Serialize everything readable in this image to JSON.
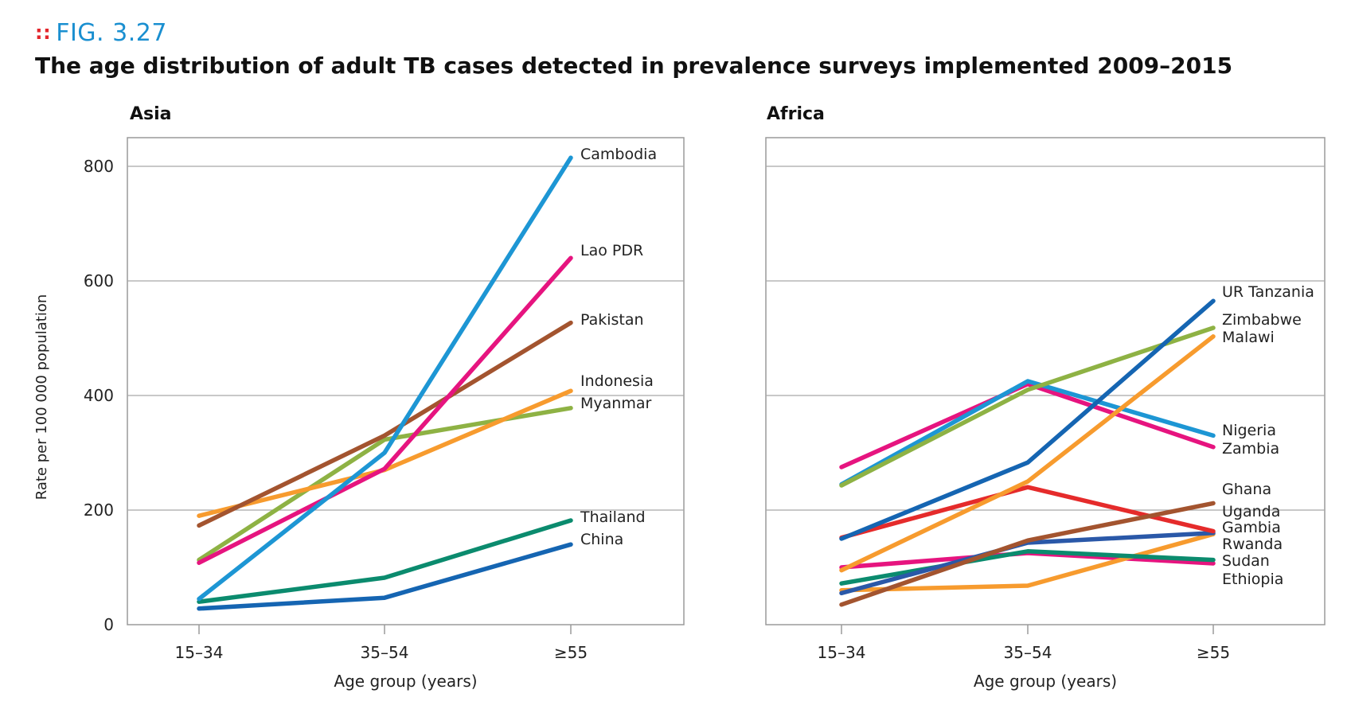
{
  "figure": {
    "number": "FIG. 3.27",
    "title": "The age distribution of adult TB cases detected in prevalence surveys implemented 2009–2015"
  },
  "colors": {
    "blue_light": "#1d96d4",
    "blue_dark": "#1565b2",
    "magenta": "#e6147f",
    "brown": "#a3542f",
    "orange": "#f79b2e",
    "olive": "#8eb244",
    "teal": "#0b8b6e",
    "red": "#e52b2b",
    "marker": "#e3262c",
    "fig_number": "#1a8fd0"
  },
  "chart_data": [
    {
      "type": "line",
      "panel_title": "Asia",
      "categories": [
        "15–34",
        "35–54",
        "≥55"
      ],
      "xlabel": "Age group (years)",
      "ylabel": "Rate per 100 000 population",
      "ylim": [
        0,
        850
      ],
      "yticks": [
        0,
        200,
        400,
        600,
        800
      ],
      "grid": true,
      "series": [
        {
          "name": "Cambodia",
          "color": "#1d96d4",
          "values": [
            45,
            300,
            815
          ]
        },
        {
          "name": "Lao PDR",
          "color": "#e6147f",
          "values": [
            108,
            272,
            640
          ]
        },
        {
          "name": "Pakistan",
          "color": "#a3542f",
          "values": [
            173,
            330,
            527
          ]
        },
        {
          "name": "Indonesia",
          "color": "#f79b2e",
          "values": [
            190,
            270,
            408
          ]
        },
        {
          "name": "Myanmar",
          "color": "#8eb244",
          "values": [
            113,
            323,
            378
          ]
        },
        {
          "name": "Thailand",
          "color": "#0b8b6e",
          "values": [
            40,
            82,
            182
          ]
        },
        {
          "name": "China",
          "color": "#1565b2",
          "values": [
            28,
            47,
            140
          ]
        }
      ]
    },
    {
      "type": "line",
      "panel_title": "Africa",
      "categories": [
        "15–34",
        "35–54",
        "≥55"
      ],
      "xlabel": "Age group (years)",
      "ylabel": "",
      "ylim": [
        0,
        850
      ],
      "yticks": [
        0,
        200,
        400,
        600,
        800
      ],
      "grid": true,
      "series": [
        {
          "name": "UR Tanzania",
          "color": "#1565b2",
          "values": [
            150,
            283,
            565
          ]
        },
        {
          "name": "Zimbabwe",
          "color": "#8eb244",
          "values": [
            243,
            410,
            518
          ]
        },
        {
          "name": "Malawi",
          "color": "#f79b2e",
          "values": [
            95,
            250,
            503
          ]
        },
        {
          "name": "Nigeria",
          "color": "#1d96d4",
          "values": [
            245,
            425,
            330
          ]
        },
        {
          "name": "Zambia",
          "color": "#e6147f",
          "values": [
            275,
            420,
            310
          ]
        },
        {
          "name": "Ghana",
          "color": "#a3542f",
          "values": [
            35,
            147,
            212
          ]
        },
        {
          "name": "Uganda",
          "color": "#e52b2b",
          "values": [
            152,
            240,
            163
          ]
        },
        {
          "name": "Gambia",
          "color": "#2a58a8",
          "values": [
            55,
            143,
            160
          ]
        },
        {
          "name": "Rwanda",
          "color": "#0b8b6e",
          "values": [
            72,
            128,
            113
          ]
        },
        {
          "name": "Sudan",
          "color": "#f79b2e",
          "values": [
            60,
            68,
            158
          ]
        },
        {
          "name": "Ethiopia",
          "color": "#e6147f",
          "values": [
            100,
            125,
            107
          ]
        }
      ]
    }
  ]
}
